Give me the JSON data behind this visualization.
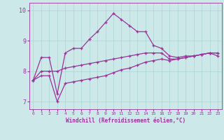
{
  "xlabel": "Windchill (Refroidissement éolien,°C)",
  "bg_color": "#cde8e8",
  "line_color": "#993399",
  "grid_color": "#aad4d4",
  "x_ticks": [
    0,
    1,
    2,
    3,
    4,
    5,
    6,
    7,
    8,
    9,
    10,
    11,
    12,
    13,
    14,
    15,
    16,
    17,
    18,
    19,
    20,
    21,
    22,
    23
  ],
  "ylim": [
    6.75,
    10.25
  ],
  "xlim": [
    -0.5,
    23.5
  ],
  "series1_x": [
    0,
    1,
    2,
    3,
    4,
    5,
    6,
    7,
    8,
    9,
    10,
    11,
    12,
    13,
    14,
    15,
    16,
    17,
    18,
    19,
    20,
    21,
    22,
    23
  ],
  "series1_y": [
    7.7,
    8.45,
    8.45,
    7.25,
    8.6,
    8.75,
    8.75,
    9.05,
    9.3,
    9.6,
    9.9,
    9.7,
    9.5,
    9.3,
    9.3,
    8.85,
    8.75,
    8.5,
    8.45,
    8.5,
    8.5,
    8.55,
    8.6,
    8.6
  ],
  "series2_x": [
    0,
    1,
    2,
    3,
    4,
    5,
    6,
    7,
    8,
    9,
    10,
    11,
    12,
    13,
    14,
    15,
    16,
    17,
    18,
    19,
    20,
    21,
    22,
    23
  ],
  "series2_y": [
    7.7,
    8.0,
    8.0,
    8.0,
    8.1,
    8.15,
    8.2,
    8.25,
    8.3,
    8.35,
    8.4,
    8.45,
    8.5,
    8.55,
    8.6,
    8.6,
    8.6,
    8.4,
    8.4,
    8.45,
    8.5,
    8.55,
    8.6,
    8.6
  ],
  "series3_x": [
    0,
    1,
    2,
    3,
    4,
    5,
    6,
    7,
    8,
    9,
    10,
    11,
    12,
    13,
    14,
    15,
    16,
    17,
    18,
    19,
    20,
    21,
    22,
    23
  ],
  "series3_y": [
    7.7,
    7.85,
    7.85,
    7.0,
    7.6,
    7.65,
    7.7,
    7.75,
    7.8,
    7.85,
    7.95,
    8.05,
    8.1,
    8.2,
    8.3,
    8.35,
    8.4,
    8.35,
    8.4,
    8.45,
    8.5,
    8.55,
    8.6,
    8.5
  ],
  "yticks": [
    7,
    8,
    9,
    10
  ]
}
